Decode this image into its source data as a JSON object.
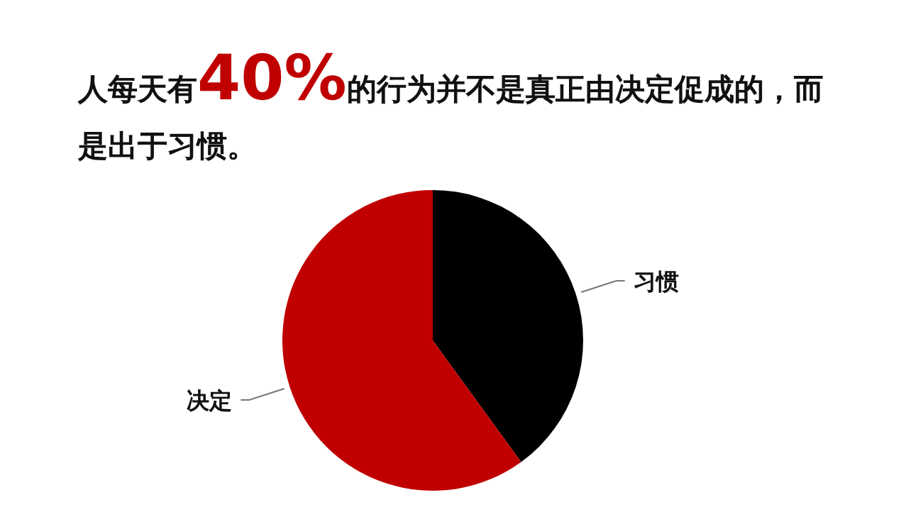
{
  "chart_data": {
    "type": "pie",
    "title": "人每天有40%的行为并不是真正由决定促成的，而是出于习惯。",
    "categories": [
      "习惯",
      "决定"
    ],
    "values": [
      40,
      60
    ],
    "colors": [
      "#000000",
      "#c00000"
    ]
  }
}
